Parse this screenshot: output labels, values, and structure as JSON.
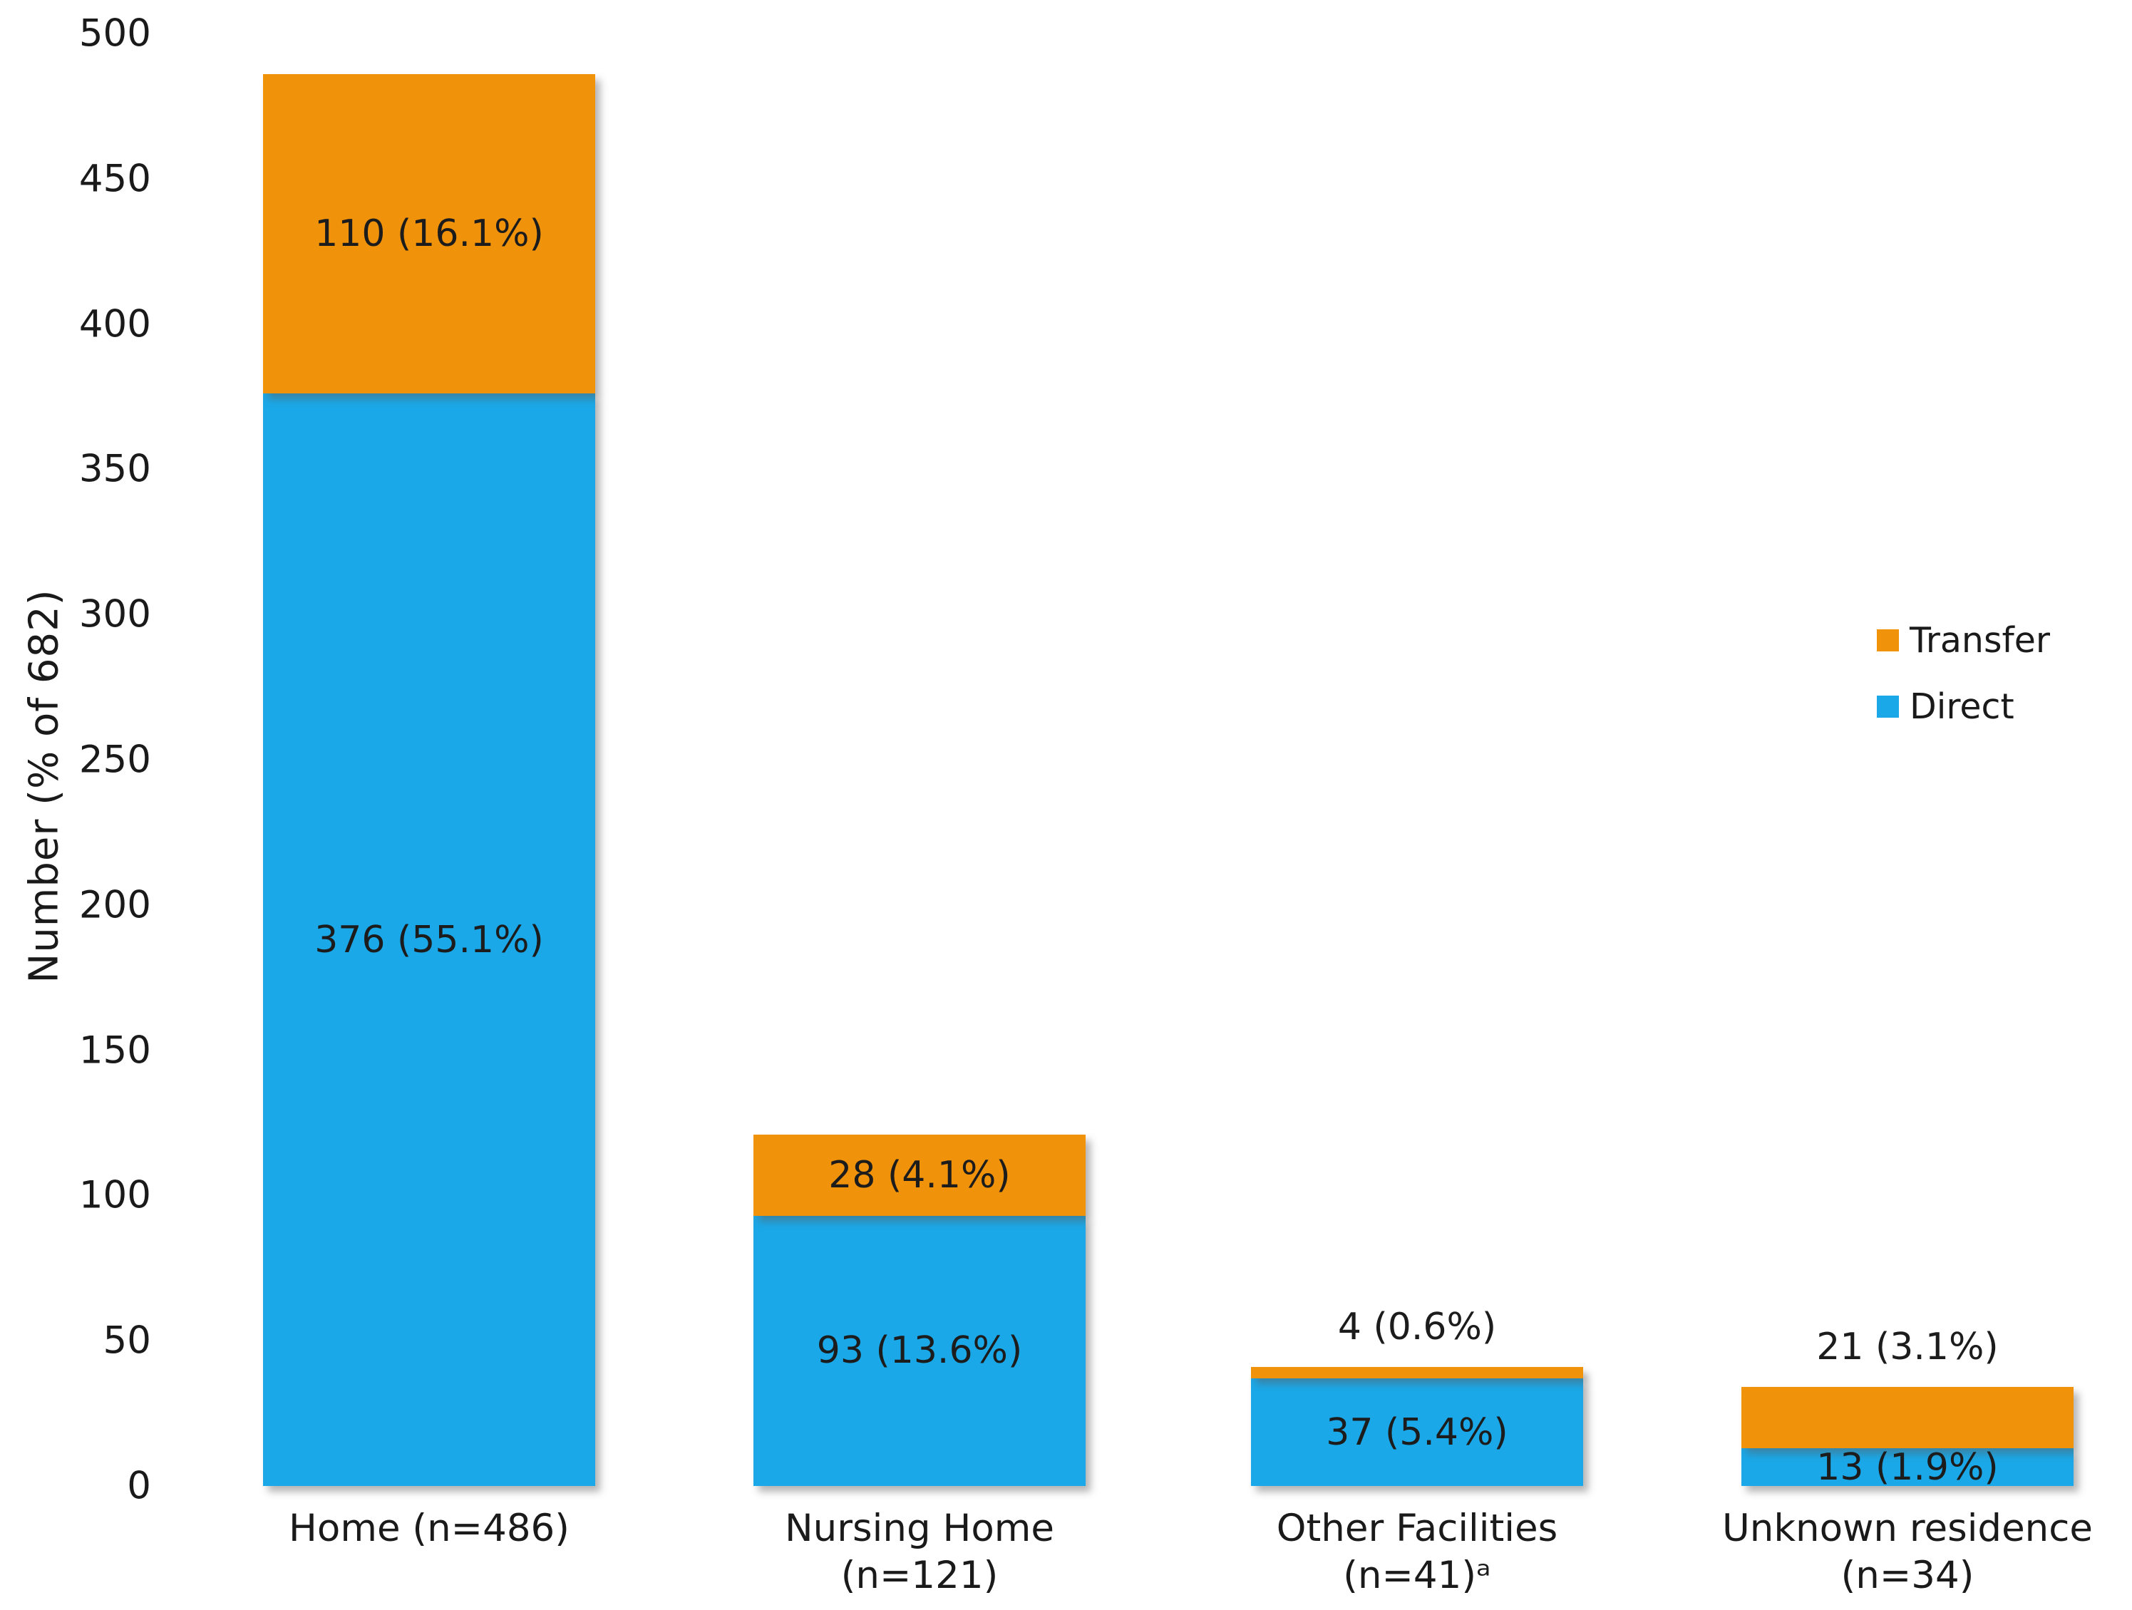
{
  "chart_data": {
    "type": "bar",
    "stacked": true,
    "title": "",
    "xlabel": "",
    "ylabel": "Number (% of 682)",
    "ylim": [
      0,
      500
    ],
    "ytick_step": 50,
    "ytick_labels": [
      "0",
      "50",
      "100",
      "150",
      "200",
      "250",
      "300",
      "350",
      "400",
      "450",
      "500"
    ],
    "grid": false,
    "axis_lines": false,
    "categories": [
      "Home (n=486)",
      "Nursing Home (n=121)",
      "Other Facilities (n=41)ᵃ",
      "Unknown residence (n=34)"
    ],
    "category_label_lines": [
      [
        "Home (n=486)"
      ],
      [
        "Nursing Home",
        "(n=121)"
      ],
      [
        "Other Facilities",
        "(n=41)ᵃ"
      ],
      [
        "Unknown residence",
        "(n=34)"
      ]
    ],
    "series": [
      {
        "name": "Transfer",
        "color": "#F0920A",
        "values": [
          110,
          28,
          4,
          21
        ],
        "data_labels": [
          "110 (16.1%)",
          "28 (4.1%)",
          "4 (0.6%)",
          "21 (3.1%)"
        ],
        "label_placement": [
          "inside",
          "inside",
          "above",
          "above"
        ]
      },
      {
        "name": "Direct",
        "color": "#1BA8E8",
        "values": [
          376,
          93,
          37,
          13
        ],
        "data_labels": [
          "376 (55.1%)",
          "93 (13.6%)",
          "37 (5.4%)",
          "13 (1.9%)"
        ],
        "label_placement": [
          "inside",
          "inside",
          "inside",
          "inside"
        ]
      }
    ],
    "stack_bottom_to_top": [
      "Direct",
      "Transfer"
    ],
    "legend": {
      "position": "middle-right",
      "entries": [
        {
          "label": "Transfer",
          "color": "#F0920A"
        },
        {
          "label": "Direct",
          "color": "#1BA8E8"
        }
      ]
    }
  }
}
